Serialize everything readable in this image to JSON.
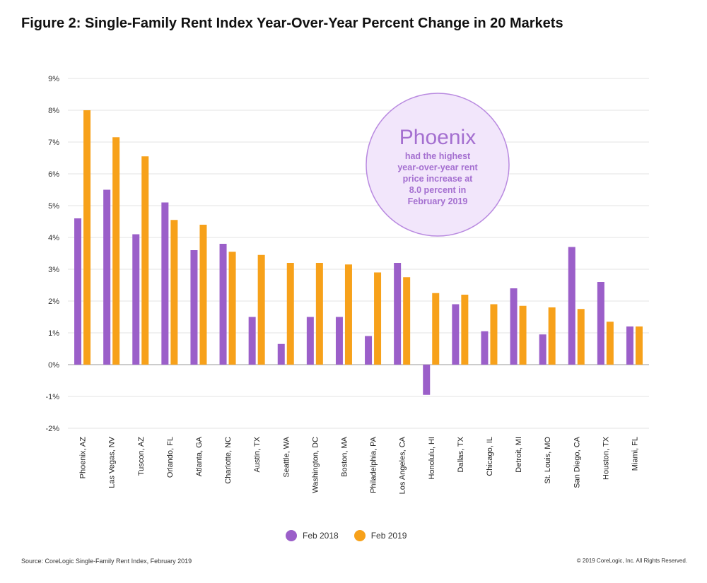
{
  "title": "Figure 2: Single-Family Rent Index Year-Over-Year Percent Change in 20 Markets",
  "annotation": {
    "heading": "Phoenix",
    "lines": [
      "had the highest",
      "year-over-year rent",
      "price increase at",
      "8.0 percent in",
      "February 2019"
    ]
  },
  "legend": [
    {
      "label": "Feb 2018",
      "color": "#9b5fc9"
    },
    {
      "label": "Feb 2019",
      "color": "#f7a11a"
    }
  ],
  "source": "Source: CoreLogic Single-Family Rent Index, February 2019",
  "copyright": "© 2019 CoreLogic, Inc. All Rights Reserved.",
  "chart_data": {
    "type": "bar",
    "categories": [
      "Phoenix, AZ",
      "Las Vegas, NV",
      "Tuscon, AZ",
      "Orlando, FL",
      "Atlanta, GA",
      "Charlotte, NC",
      "Austin, TX",
      "Seattle, WA",
      "Washington, DC",
      "Boston, MA",
      "Philadelphia, PA",
      "Los Angeles, CA",
      "Honolulu, HI",
      "Dallas, TX",
      "Chicago, IL",
      "Detroit, MI",
      "St. Louis, MO",
      "San Diego, CA",
      "Houston, TX",
      "Miami, FL"
    ],
    "series": [
      {
        "name": "Feb 2018",
        "color": "#9b5fc9",
        "values": [
          4.6,
          5.5,
          4.1,
          5.1,
          3.6,
          3.8,
          1.5,
          0.65,
          1.5,
          1.5,
          0.9,
          3.2,
          -0.95,
          1.9,
          1.05,
          2.4,
          0.95,
          3.7,
          2.6,
          1.2
        ]
      },
      {
        "name": "Feb 2019",
        "color": "#f7a11a",
        "values": [
          8.0,
          7.15,
          6.55,
          4.55,
          4.4,
          3.55,
          3.45,
          3.2,
          3.2,
          3.15,
          2.9,
          2.75,
          2.25,
          2.2,
          1.9,
          1.85,
          1.8,
          1.75,
          1.35,
          1.2
        ]
      }
    ],
    "yticks": [
      "9%",
      "8%",
      "7%",
      "6%",
      "5%",
      "4%",
      "3%",
      "2%",
      "1%",
      "0%",
      "-1%",
      "-2%"
    ],
    "ylim": [
      -2,
      9
    ],
    "grid": true,
    "legend_position": "bottom"
  }
}
